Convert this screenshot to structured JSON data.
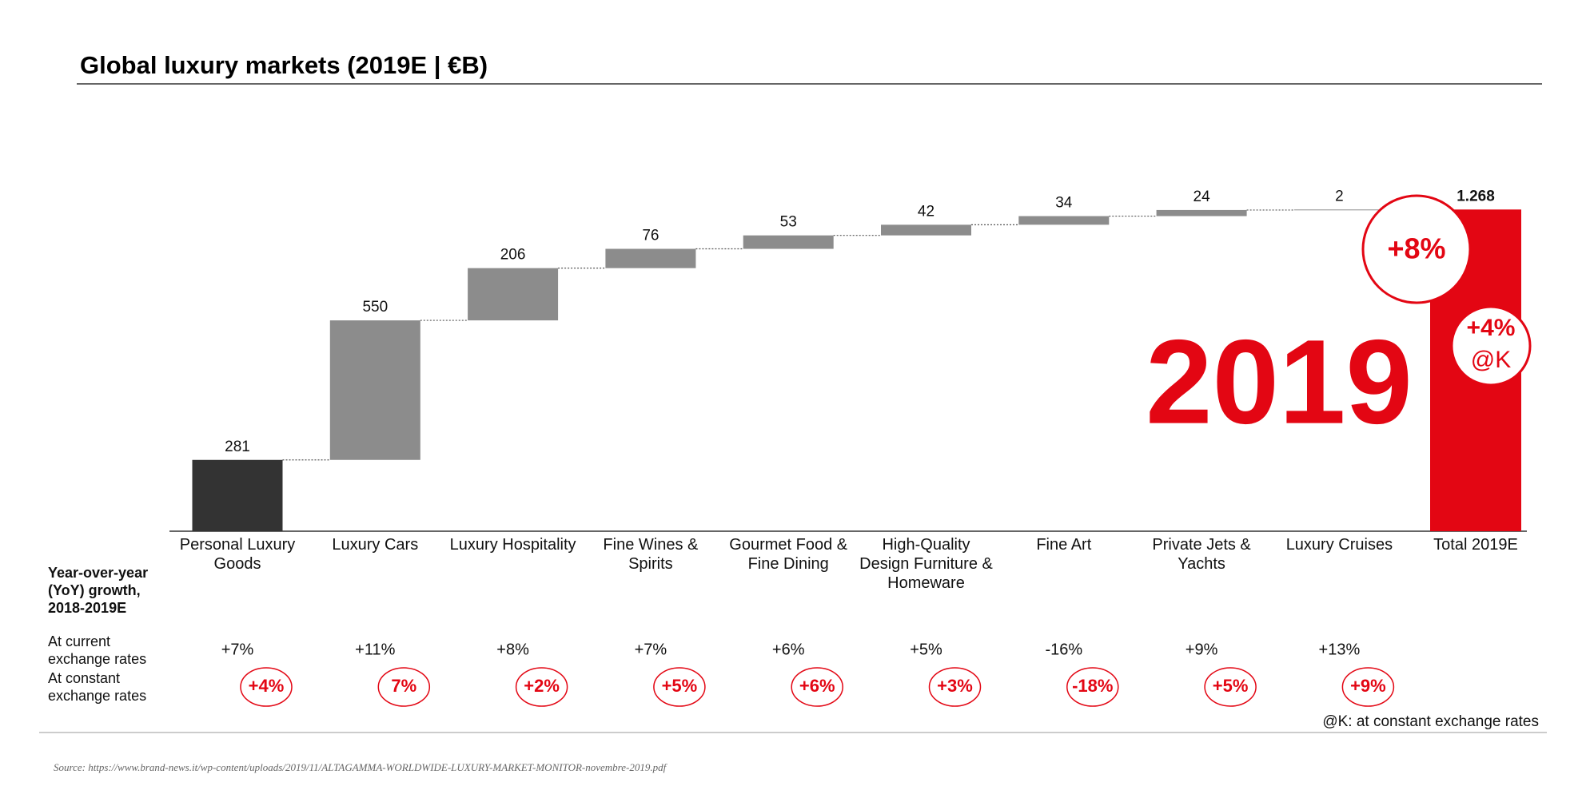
{
  "chart_data": {
    "type": "waterfall",
    "title": "Global luxury markets (2019E | €B)",
    "categories": [
      "Personal Luxury Goods",
      "Luxury Cars",
      "Luxury Hospitality",
      "Fine Wines & Spirits",
      "Gourmet Food & Fine Dining",
      "High-Quality Design Furniture & Homeware",
      "Fine Art",
      "Private Jets & Yachts",
      "Luxury Cruises"
    ],
    "values": [
      281,
      550,
      206,
      76,
      53,
      42,
      34,
      24,
      2
    ],
    "colors": [
      "#333333",
      "#8c8c8c",
      "#8c8c8c",
      "#8c8c8c",
      "#8c8c8c",
      "#8c8c8c",
      "#8c8c8c",
      "#8c8c8c",
      "#8c8c8c"
    ],
    "total": {
      "label": "Total 2019E",
      "value": 1268,
      "value_label": "1.268",
      "color": "#e30613"
    },
    "total_growth": {
      "value": 8,
      "label": "+8%"
    },
    "total_growth_constant": {
      "value": 4,
      "label": "+4%",
      "note": "@K"
    },
    "year_annotation": "2019",
    "growth": {
      "title": "Year-over-year (YoY) growth, 2018-2019E",
      "rows": [
        {
          "name": "At current exchange rates",
          "values": [
            7,
            11,
            8,
            7,
            6,
            5,
            -16,
            9,
            13
          ],
          "value_labels": [
            "+7%",
            "+11%",
            "+8%",
            "+7%",
            "+6%",
            "+5%",
            "-16%",
            "+9%",
            "+13%"
          ]
        },
        {
          "name": "At constant exchange rates",
          "values": [
            4,
            7,
            2,
            5,
            6,
            3,
            -18,
            5,
            9
          ],
          "value_labels": [
            "+4%",
            "7%",
            "+2%",
            "+5%",
            "+6%",
            "+3%",
            "-18%",
            "+5%",
            "+9%"
          ]
        }
      ]
    },
    "footnote": "@K: at constant exchange rates",
    "source": "Source: https://www.brand-news.it/wp-content/uploads/2019/11/ALTAGAMMA-WORLDWIDE-LUXURY-MARKET-MONITOR-novembre-2019.pdf"
  }
}
